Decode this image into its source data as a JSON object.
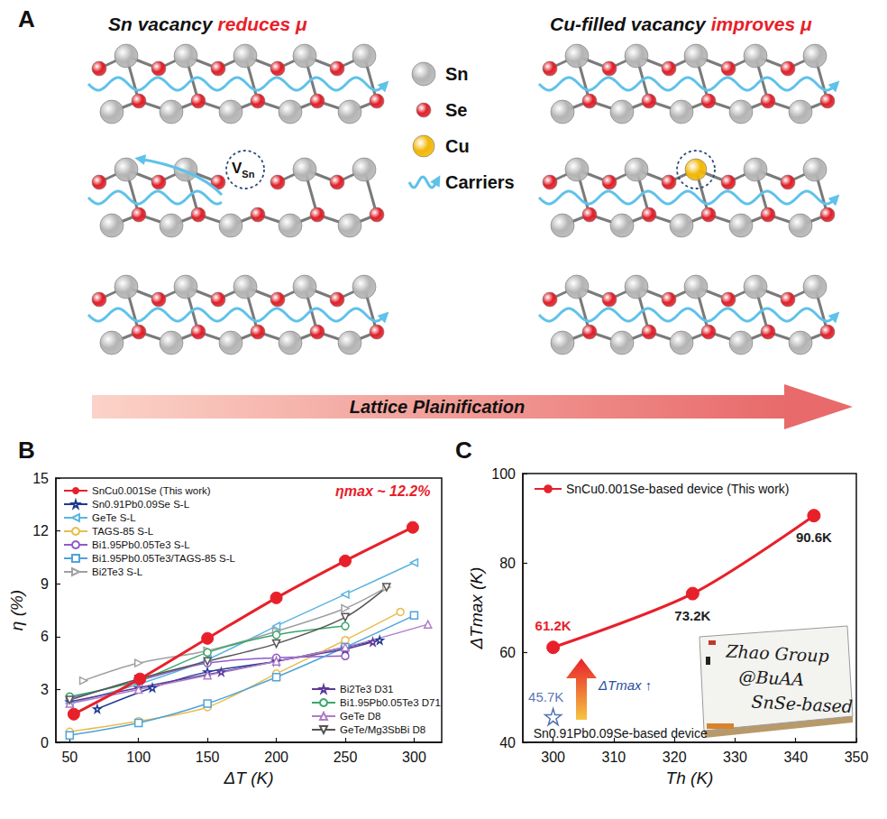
{
  "panel_labels": [
    "A",
    "B",
    "C"
  ],
  "diagram": {
    "left_title": {
      "text": "Sn vacancy",
      "highlight": "reduces μ"
    },
    "right_title": {
      "text": "Cu-filled vacancy",
      "highlight": "improves  μ"
    },
    "vacancy_label": {
      "main": "V",
      "sub": "Sn"
    },
    "legend": [
      {
        "label": "Sn",
        "color": "#b4b4b4"
      },
      {
        "label": "Se",
        "color": "#e0202a"
      },
      {
        "label": "Cu",
        "color": "#f2b705"
      },
      {
        "label": "Carriers",
        "color": "#5ec2ea"
      }
    ],
    "arrow_label": "Lattice Plainification"
  },
  "chart_data": [
    {
      "type": "line",
      "x_label": "ΔT (K)",
      "y_label": "η (%)",
      "xlim": [
        40,
        320
      ],
      "xticks": [
        50,
        100,
        150,
        200,
        250,
        300
      ],
      "ylim": [
        0,
        15
      ],
      "yticks": [
        0,
        3,
        6,
        9,
        12,
        15
      ],
      "grid": false,
      "legend": "upper left",
      "annotations": [
        {
          "text": "ηmax ~ 12.2%",
          "color": "#e8202a"
        }
      ],
      "series": [
        {
          "name": "SnCu0.001Se (This work)",
          "color": "#e8202a",
          "marker": "circle",
          "x": [
            53,
            101,
            150,
            200,
            250,
            299
          ],
          "values": [
            1.6,
            3.6,
            5.9,
            8.2,
            10.3,
            12.2
          ]
        },
        {
          "name": "Sn0.91Pb0.09Se S-L",
          "color": "#1f3a93",
          "marker": "star-open",
          "x": [
            70,
            110,
            150,
            200,
            250,
            275
          ],
          "values": [
            1.9,
            3.1,
            4.0,
            4.6,
            5.4,
            5.8
          ]
        },
        {
          "name": "GeTe S-L",
          "color": "#5bb5e0",
          "marker": "triangle-left-open",
          "x": [
            50,
            100,
            150,
            200,
            250,
            300
          ],
          "values": [
            2.2,
            3.3,
            4.7,
            6.6,
            8.4,
            10.2
          ]
        },
        {
          "name": "TAGS-85 S-L",
          "color": "#e9bd4c",
          "marker": "circle-open",
          "x": [
            50,
            100,
            150,
            200,
            250,
            290
          ],
          "values": [
            0.6,
            1.2,
            2.0,
            3.9,
            5.8,
            7.4
          ]
        },
        {
          "name": "Bi1.95Pb0.05Te3 S-L",
          "color": "#8e5cc7",
          "marker": "circle-open",
          "x": [
            50,
            100,
            150,
            200,
            250
          ],
          "values": [
            2.5,
            3.5,
            4.5,
            4.8,
            4.9
          ]
        },
        {
          "name": "Bi1.95Pb0.05Te3/TAGS-85 S-L",
          "color": "#4fa3d9",
          "marker": "square-open",
          "x": [
            50,
            100,
            150,
            200,
            250,
            300
          ],
          "values": [
            0.4,
            1.1,
            2.2,
            3.7,
            5.4,
            7.2
          ]
        },
        {
          "name": "Bi2Te3 S-L",
          "color": "#a0a0a0",
          "marker": "triangle-right-open",
          "x": [
            60,
            100,
            150,
            200,
            250,
            280
          ],
          "values": [
            3.5,
            4.5,
            5.2,
            6.3,
            7.6,
            8.8
          ]
        },
        {
          "name": "Bi2Te3 D31",
          "color": "#5b3a9b",
          "marker": "star-open",
          "x": [
            50,
            100,
            160,
            200,
            250,
            270
          ],
          "values": [
            2.3,
            3.1,
            4.0,
            4.6,
            5.3,
            5.7
          ]
        },
        {
          "name": "Bi1.95Pb0.05Te3 D71",
          "color": "#3aa66a",
          "marker": "circle-open",
          "x": [
            50,
            100,
            150,
            200,
            250
          ],
          "values": [
            2.6,
            3.5,
            5.1,
            6.1,
            6.6
          ]
        },
        {
          "name": "GeTe D8",
          "color": "#b07cc6",
          "marker": "triangle-open",
          "x": [
            50,
            100,
            150,
            200,
            250,
            310
          ],
          "values": [
            2.2,
            3.0,
            3.8,
            4.6,
            5.4,
            6.7
          ]
        },
        {
          "name": "GeTe/Mg3SbBi D8",
          "color": "#555555",
          "marker": "triangle-down-open",
          "x": [
            50,
            100,
            150,
            200,
            250,
            280
          ],
          "values": [
            2.4,
            3.6,
            4.6,
            5.6,
            7.1,
            8.8
          ]
        }
      ]
    },
    {
      "type": "line",
      "x_label": "Th (K)",
      "y_label": "ΔTmax (K)",
      "xlim": [
        295,
        350
      ],
      "xticks": [
        300,
        310,
        320,
        330,
        340,
        350
      ],
      "ylim": [
        40,
        100
      ],
      "yticks": [
        40,
        60,
        80,
        100
      ],
      "grid": false,
      "legend": "upper left",
      "data_labels": true,
      "series": [
        {
          "name": "SnCu0.001Se-based device (This work)",
          "color": "#e8202a",
          "marker": "circle",
          "x": [
            300,
            323,
            343
          ],
          "values": [
            61.2,
            73.2,
            90.6
          ],
          "value_labels": [
            "61.2K",
            "73.2K",
            "90.6K"
          ]
        }
      ],
      "reference": {
        "name": "Sn0.91Pb0.09Se-based device",
        "color": "#2b4fa0",
        "marker": "star-open",
        "x": [
          300
        ],
        "values": [
          45.7
        ],
        "value_labels": [
          "45.7K"
        ]
      },
      "annotations": [
        {
          "text": "ΔTmax ↑",
          "color": "#2b4fa0"
        }
      ],
      "inset_text": [
        "Zhao Group",
        "@BuAA",
        "SnSe-based"
      ]
    }
  ]
}
